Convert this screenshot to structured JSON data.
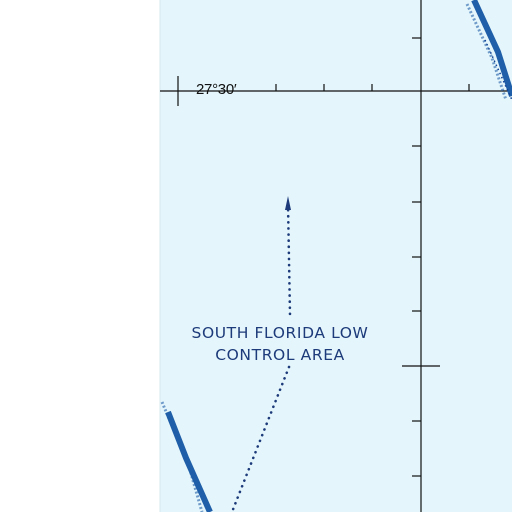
{
  "map": {
    "latitude_label": "27°30′",
    "airspace_label": {
      "line1": "SOUTH FLORIDA LOW",
      "line2": "CONTROL AREA"
    },
    "colors": {
      "water": "#e4f6fb",
      "background": "#ffffff",
      "airspace_boundary": "#1f5ea8",
      "label_text": "#1d3a7a",
      "grid_lines": "#111111"
    }
  }
}
